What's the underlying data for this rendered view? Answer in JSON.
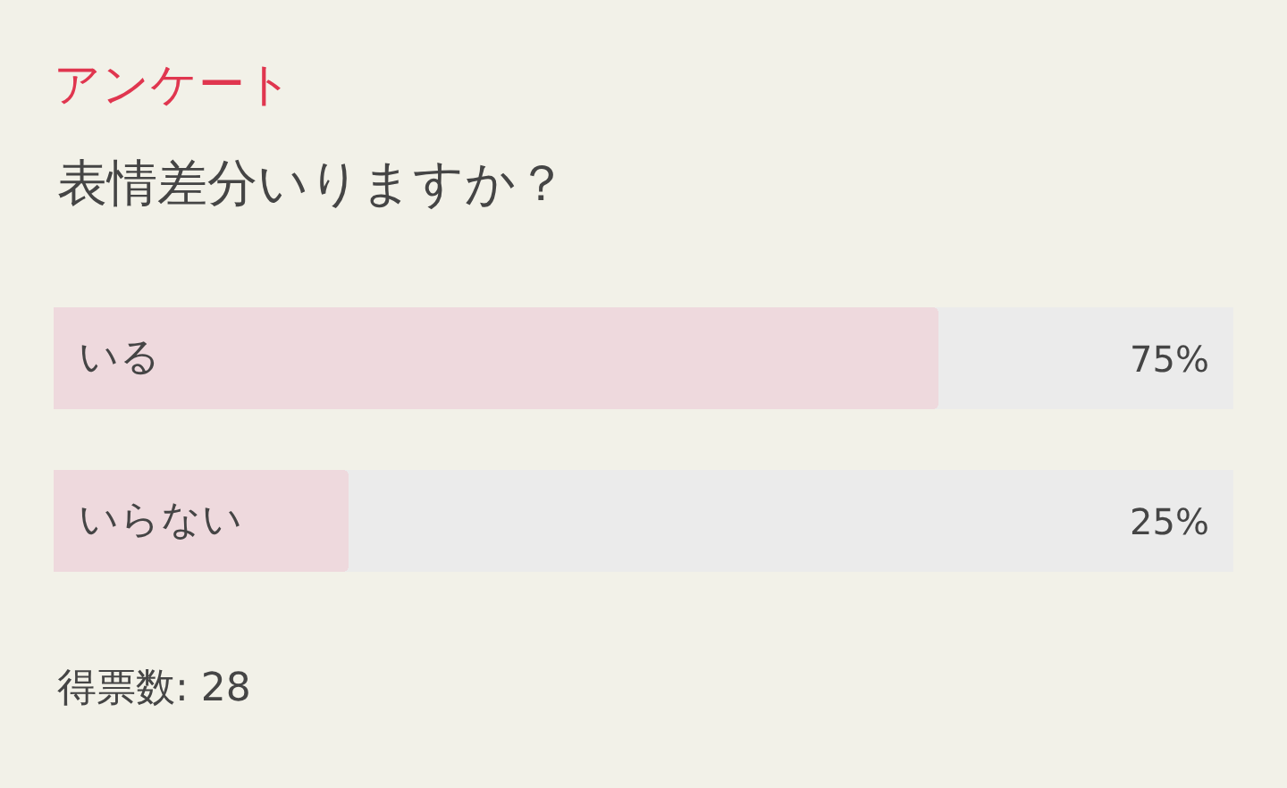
{
  "chart_data": {
    "type": "bar",
    "orientation": "horizontal",
    "title": "アンケート",
    "subtitle": "表情差分いりますか？",
    "categories": [
      "いる",
      "いらない"
    ],
    "values": [
      75,
      25
    ],
    "value_labels": [
      "75%",
      "25%"
    ],
    "color": "#eed9dd",
    "xlim": [
      0,
      100
    ],
    "tick_labels": false,
    "annotations": [
      "得票数: 28"
    ]
  }
}
